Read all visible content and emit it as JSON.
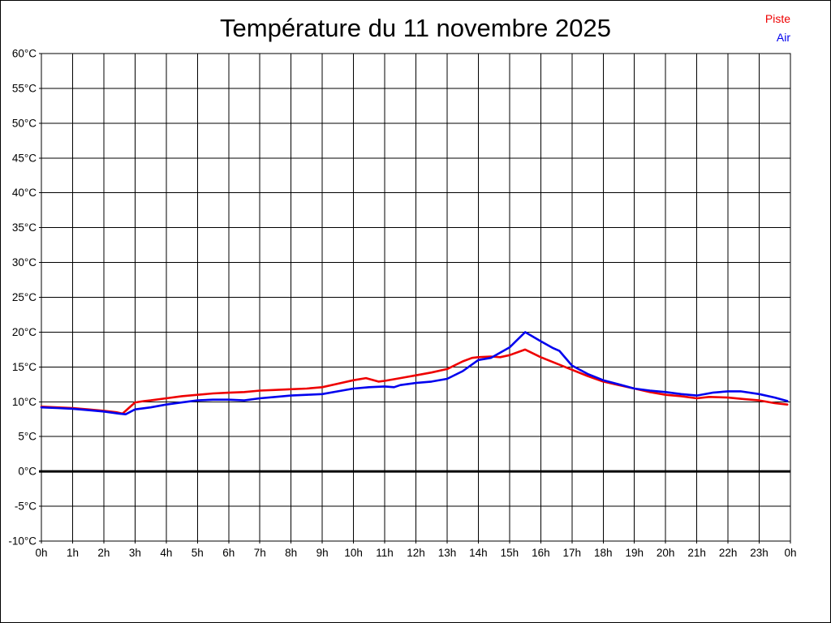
{
  "chart_data": {
    "type": "line",
    "title": "Température du 11 novembre 2025",
    "x_axis": {
      "unit": "h",
      "range": [
        0,
        24
      ],
      "tick_values": [
        0,
        1,
        2,
        3,
        4,
        5,
        6,
        7,
        8,
        9,
        10,
        11,
        12,
        13,
        14,
        15,
        16,
        17,
        18,
        19,
        20,
        21,
        22,
        23,
        24
      ],
      "tick_labels": [
        "0h",
        "1h",
        "2h",
        "3h",
        "4h",
        "5h",
        "6h",
        "7h",
        "8h",
        "9h",
        "10h",
        "11h",
        "12h",
        "13h",
        "14h",
        "15h",
        "16h",
        "17h",
        "18h",
        "19h",
        "20h",
        "21h",
        "22h",
        "23h",
        "0h"
      ]
    },
    "y_axis": {
      "unit": "°C",
      "range": [
        -10,
        60
      ],
      "tick_values": [
        60,
        55,
        50,
        45,
        40,
        35,
        30,
        25,
        20,
        15,
        10,
        5,
        0,
        -5,
        -10
      ],
      "tick_labels": [
        "60°C",
        "55°C",
        "50°C",
        "45°C",
        "40°C",
        "35°C",
        "30°C",
        "25°C",
        "20°C",
        "15°C",
        "10°C",
        "5°C",
        "0°C",
        "-5°C",
        "-10°C"
      ],
      "zero_line_bold": true
    },
    "grid": "on",
    "grid_color": "#000000",
    "legend_position": "top-right",
    "series": [
      {
        "name": "Piste",
        "color": "#ee0000",
        "points": [
          [
            0,
            9.3
          ],
          [
            0.5,
            9.2
          ],
          [
            1,
            9.1
          ],
          [
            1.5,
            8.9
          ],
          [
            2,
            8.7
          ],
          [
            2.4,
            8.5
          ],
          [
            2.6,
            8.3
          ],
          [
            3,
            9.9
          ],
          [
            3.3,
            10.1
          ],
          [
            3.5,
            10.2
          ],
          [
            4,
            10.5
          ],
          [
            4.5,
            10.8
          ],
          [
            5,
            11.0
          ],
          [
            5.5,
            11.2
          ],
          [
            6,
            11.3
          ],
          [
            6.5,
            11.4
          ],
          [
            7,
            11.6
          ],
          [
            7.5,
            11.7
          ],
          [
            8,
            11.8
          ],
          [
            8.5,
            11.9
          ],
          [
            9,
            12.1
          ],
          [
            9.5,
            12.6
          ],
          [
            10,
            13.1
          ],
          [
            10.4,
            13.4
          ],
          [
            10.8,
            12.9
          ],
          [
            11,
            13.0
          ],
          [
            11.5,
            13.4
          ],
          [
            12,
            13.8
          ],
          [
            12.5,
            14.2
          ],
          [
            13,
            14.7
          ],
          [
            13.5,
            15.8
          ],
          [
            13.8,
            16.3
          ],
          [
            14,
            16.4
          ],
          [
            14.4,
            16.5
          ],
          [
            14.7,
            16.4
          ],
          [
            15,
            16.7
          ],
          [
            15.5,
            17.5
          ],
          [
            16,
            16.4
          ],
          [
            16.5,
            15.5
          ],
          [
            17,
            14.6
          ],
          [
            17.5,
            13.7
          ],
          [
            18,
            12.9
          ],
          [
            18.5,
            12.4
          ],
          [
            19,
            11.9
          ],
          [
            19.5,
            11.4
          ],
          [
            20,
            11.0
          ],
          [
            20.5,
            10.8
          ],
          [
            21,
            10.5
          ],
          [
            21.4,
            10.7
          ],
          [
            22,
            10.6
          ],
          [
            22.5,
            10.4
          ],
          [
            23,
            10.2
          ],
          [
            23.5,
            9.8
          ],
          [
            23.9,
            9.6
          ]
        ]
      },
      {
        "name": "Air",
        "color": "#0000ee",
        "points": [
          [
            0,
            9.2
          ],
          [
            0.5,
            9.1
          ],
          [
            1,
            9.0
          ],
          [
            1.5,
            8.8
          ],
          [
            2,
            8.6
          ],
          [
            2.5,
            8.3
          ],
          [
            2.7,
            8.2
          ],
          [
            3,
            8.9
          ],
          [
            3.5,
            9.2
          ],
          [
            4,
            9.6
          ],
          [
            4.5,
            9.9
          ],
          [
            5,
            10.2
          ],
          [
            5.5,
            10.3
          ],
          [
            6,
            10.3
          ],
          [
            6.5,
            10.2
          ],
          [
            7,
            10.5
          ],
          [
            7.5,
            10.7
          ],
          [
            8,
            10.9
          ],
          [
            8.5,
            11.0
          ],
          [
            9,
            11.1
          ],
          [
            9.5,
            11.5
          ],
          [
            10,
            11.9
          ],
          [
            10.5,
            12.1
          ],
          [
            11,
            12.2
          ],
          [
            11.3,
            12.1
          ],
          [
            11.5,
            12.4
          ],
          [
            12,
            12.7
          ],
          [
            12.5,
            12.9
          ],
          [
            13,
            13.3
          ],
          [
            13.5,
            14.4
          ],
          [
            14,
            16.0
          ],
          [
            14.4,
            16.3
          ],
          [
            15,
            17.8
          ],
          [
            15.5,
            20.0
          ],
          [
            16,
            18.7
          ],
          [
            16.4,
            17.7
          ],
          [
            16.6,
            17.3
          ],
          [
            17,
            15.2
          ],
          [
            17.5,
            14.0
          ],
          [
            18,
            13.1
          ],
          [
            18.5,
            12.5
          ],
          [
            19,
            11.9
          ],
          [
            19.5,
            11.6
          ],
          [
            20,
            11.4
          ],
          [
            20.5,
            11.1
          ],
          [
            21,
            10.9
          ],
          [
            21.5,
            11.3
          ],
          [
            22,
            11.5
          ],
          [
            22.4,
            11.5
          ],
          [
            23,
            11.1
          ],
          [
            23.5,
            10.6
          ],
          [
            23.9,
            10.1
          ]
        ]
      }
    ]
  }
}
